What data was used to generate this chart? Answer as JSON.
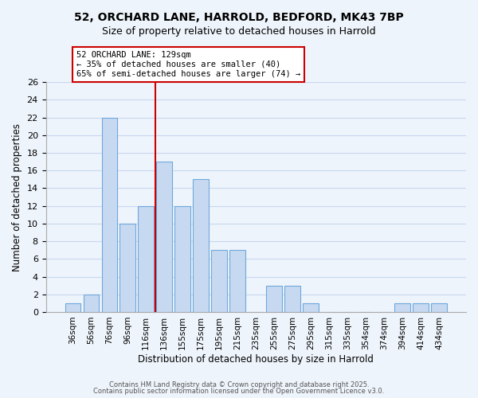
{
  "title_line1": "52, ORCHARD LANE, HARROLD, BEDFORD, MK43 7BP",
  "title_line2": "Size of property relative to detached houses in Harrold",
  "xlabel": "Distribution of detached houses by size in Harrold",
  "ylabel": "Number of detached properties",
  "bar_labels": [
    "36sqm",
    "56sqm",
    "76sqm",
    "96sqm",
    "116sqm",
    "136sqm",
    "155sqm",
    "175sqm",
    "195sqm",
    "215sqm",
    "235sqm",
    "255sqm",
    "275sqm",
    "295sqm",
    "315sqm",
    "335sqm",
    "354sqm",
    "374sqm",
    "394sqm",
    "414sqm",
    "434sqm"
  ],
  "bar_values": [
    1,
    2,
    22,
    10,
    12,
    17,
    12,
    15,
    7,
    7,
    0,
    3,
    3,
    1,
    0,
    0,
    0,
    0,
    1,
    1,
    1
  ],
  "bar_color": "#c6d9f1",
  "bar_edge_color": "#6fa8dc",
  "grid_color": "#c8d8f0",
  "background_color": "#eef4fb",
  "vline_x_index": 5,
  "vline_color": "#cc0000",
  "ylim": [
    0,
    26
  ],
  "yticks": [
    0,
    2,
    4,
    6,
    8,
    10,
    12,
    14,
    16,
    18,
    20,
    22,
    24,
    26
  ],
  "annotation_title": "52 ORCHARD LANE: 129sqm",
  "annotation_line2": "← 35% of detached houses are smaller (40)",
  "annotation_line3": "65% of semi-detached houses are larger (74) →",
  "footer_line1": "Contains HM Land Registry data © Crown copyright and database right 2025.",
  "footer_line2": "Contains public sector information licensed under the Open Government Licence v3.0."
}
